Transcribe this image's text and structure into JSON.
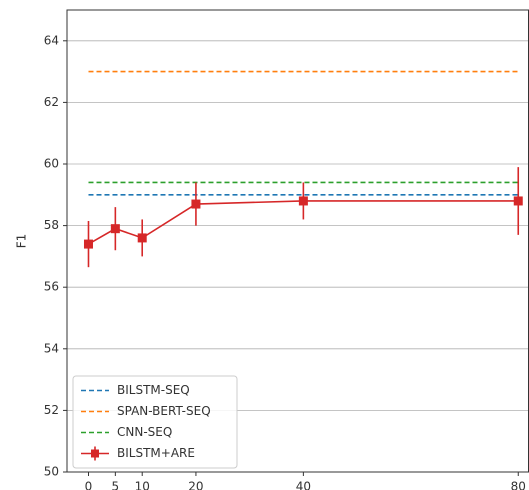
{
  "chart_data": {
    "type": "line",
    "y_label": "F1",
    "x": [
      0,
      5,
      10,
      20,
      40,
      80
    ],
    "xlim": [
      -4,
      82
    ],
    "xticks": [
      0,
      5,
      10,
      20,
      40,
      80
    ],
    "ylim": [
      50,
      65
    ],
    "yticks": [
      50,
      52,
      54,
      56,
      58,
      60,
      62,
      64
    ],
    "grid": true,
    "legend": "lower left",
    "series": [
      {
        "name": "BILSTM-SEQ",
        "color": "#1f77b4",
        "dashed": true,
        "values": [
          59.0,
          59.0,
          59.0,
          59.0,
          59.0,
          59.0
        ]
      },
      {
        "name": "SPAN-BERT-SEQ",
        "color": "#ff7f0e",
        "dashed": true,
        "values": [
          63.0,
          63.0,
          63.0,
          63.0,
          63.0,
          63.0
        ]
      },
      {
        "name": "CNN-SEQ",
        "color": "#2ca02c",
        "dashed": true,
        "values": [
          59.4,
          59.4,
          59.4,
          59.4,
          59.4,
          59.4
        ]
      },
      {
        "name": "BILSTM+ARE",
        "color": "#d62728",
        "dashed": false,
        "values": [
          57.4,
          57.9,
          57.6,
          58.7,
          58.8,
          58.8
        ],
        "errors": [
          0.75,
          0.7,
          0.6,
          0.7,
          0.6,
          1.1
        ]
      }
    ]
  }
}
